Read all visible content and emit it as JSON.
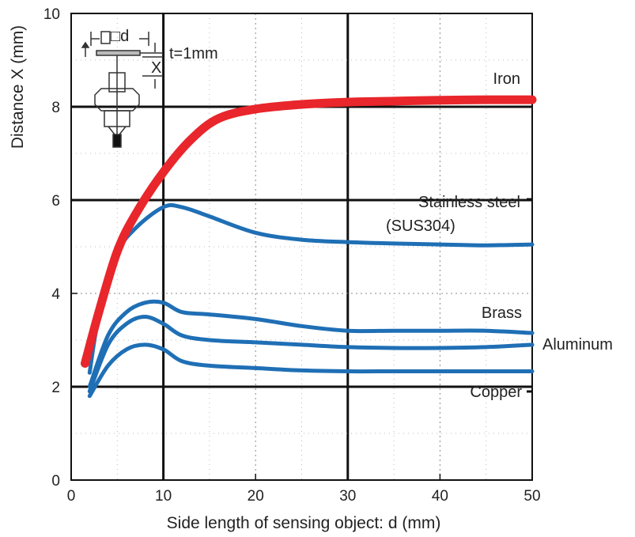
{
  "chart_data": {
    "type": "line",
    "title": "",
    "xlabel": "Side length of sensing object: d (mm)",
    "ylabel": "Distance X (mm)",
    "xlim": [
      0,
      50
    ],
    "ylim": [
      0,
      10
    ],
    "xticks": [
      0,
      10,
      20,
      30,
      40,
      50
    ],
    "yticks": [
      0,
      2,
      4,
      6,
      8,
      10
    ],
    "grid": "major",
    "legend": "inline labels at right",
    "inset": {
      "d_label": "□d",
      "x_label": "X",
      "thickness_label": "t=1mm"
    },
    "series": [
      {
        "name": "Iron",
        "color": "#e8262b",
        "x": [
          1.5,
          3,
          5,
          7,
          10,
          13,
          16,
          20,
          25,
          30,
          35,
          40,
          45,
          50
        ],
        "y": [
          2.5,
          3.6,
          4.9,
          5.7,
          6.6,
          7.3,
          7.75,
          7.95,
          8.05,
          8.1,
          8.12,
          8.14,
          8.15,
          8.15
        ]
      },
      {
        "name": "Stainless steel\n(SUS304)",
        "color": "#1f6fb5",
        "x": [
          2,
          3,
          5,
          7,
          10,
          12,
          15,
          20,
          25,
          30,
          35,
          40,
          45,
          50
        ],
        "y": [
          2.3,
          3.5,
          4.85,
          5.4,
          5.85,
          5.85,
          5.65,
          5.3,
          5.15,
          5.1,
          5.07,
          5.05,
          5.03,
          5.05
        ]
      },
      {
        "name": "Brass",
        "color": "#1f6fb5",
        "x": [
          2,
          4,
          6,
          8,
          10,
          12,
          15,
          20,
          25,
          30,
          35,
          40,
          45,
          50
        ],
        "y": [
          2.0,
          3.1,
          3.6,
          3.8,
          3.8,
          3.6,
          3.55,
          3.45,
          3.3,
          3.2,
          3.2,
          3.2,
          3.2,
          3.15
        ]
      },
      {
        "name": "Aluminum",
        "color": "#1f6fb5",
        "x": [
          2,
          4,
          6,
          8,
          10,
          12,
          15,
          20,
          25,
          30,
          35,
          40,
          45,
          50
        ],
        "y": [
          1.9,
          2.9,
          3.35,
          3.5,
          3.35,
          3.1,
          3.0,
          2.95,
          2.9,
          2.85,
          2.83,
          2.83,
          2.85,
          2.9
        ]
      },
      {
        "name": "Copper",
        "color": "#1f6fb5",
        "x": [
          2,
          4,
          6,
          8,
          10,
          12,
          15,
          20,
          25,
          30,
          35,
          40,
          45,
          50
        ],
        "y": [
          1.8,
          2.45,
          2.8,
          2.9,
          2.8,
          2.55,
          2.45,
          2.4,
          2.35,
          2.33,
          2.33,
          2.33,
          2.33,
          2.33
        ]
      }
    ]
  }
}
